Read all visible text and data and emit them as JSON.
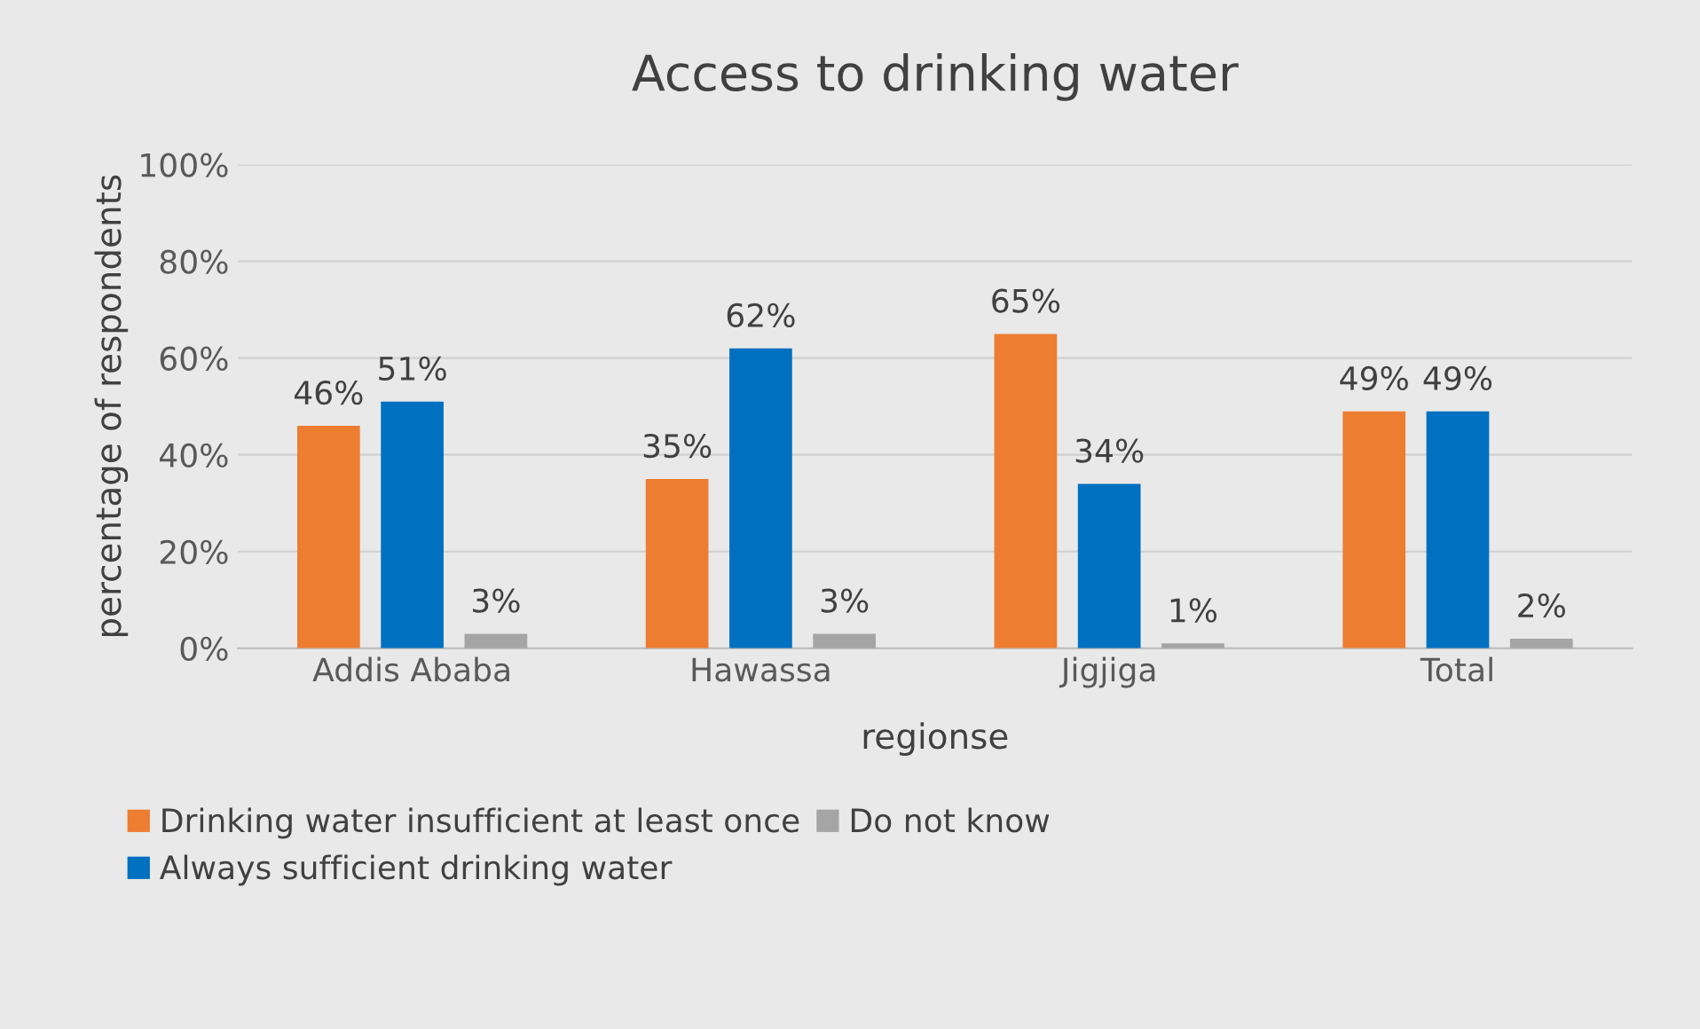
{
  "chart_data": {
    "type": "bar",
    "title": "Access to drinking water",
    "xlabel": "regionse",
    "ylabel": "percentage of respondents",
    "categories": [
      "Addis Ababa",
      "Hawassa",
      "Jigjiga",
      "Total"
    ],
    "series": [
      {
        "name": "Drinking water insufficient at least once",
        "color": "#ed7d31",
        "values": [
          46,
          35,
          65,
          49
        ],
        "value_labels": [
          "46%",
          "35%",
          "65%",
          "49%"
        ]
      },
      {
        "name": "Always sufficient drinking water",
        "color": "#0070c0",
        "values": [
          51,
          62,
          34,
          49
        ],
        "value_labels": [
          "51%",
          "62%",
          "34%",
          "49%"
        ]
      },
      {
        "name": "Do not know",
        "color": "#a5a5a5",
        "values": [
          3,
          3,
          1,
          2
        ],
        "value_labels": [
          "3%",
          "3%",
          "1%",
          "2%"
        ]
      }
    ],
    "ylim": [
      0,
      100
    ],
    "yticks": [
      {
        "value": 0,
        "label": "0%"
      },
      {
        "value": 20,
        "label": "20%"
      },
      {
        "value": 40,
        "label": "40%"
      },
      {
        "value": 60,
        "label": "60%"
      },
      {
        "value": 80,
        "label": "80%"
      },
      {
        "value": 100,
        "label": "100%"
      }
    ],
    "grid": "y",
    "legend": "bottom"
  }
}
